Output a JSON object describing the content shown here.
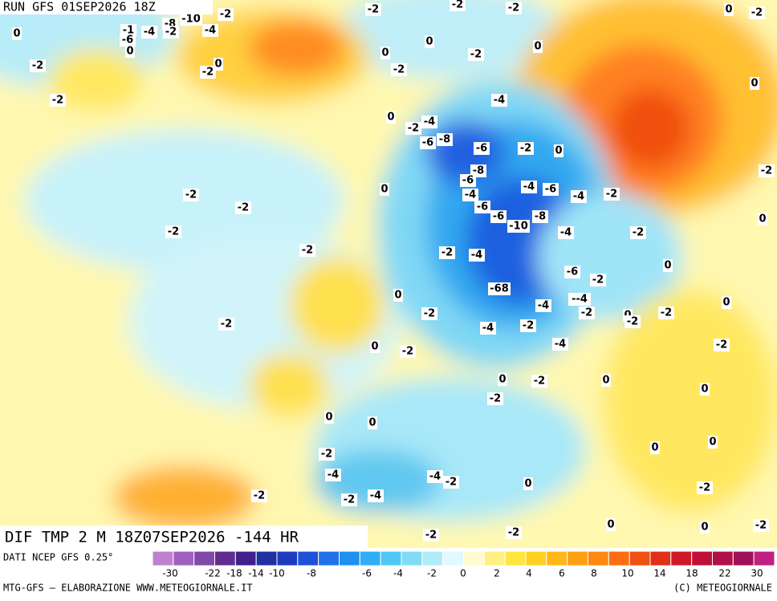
{
  "header": {
    "run": "RUN GFS 01SEP2026 18Z"
  },
  "map": {
    "title": "DIF TMP 2 M 18Z07SEP2026 -144 HR",
    "contour_labels": [
      "0",
      "-2",
      "-2",
      "-1",
      "-4",
      "-6",
      "0",
      "-8",
      "-10",
      "-2",
      "-4",
      "-2",
      "0",
      "-2",
      "-2",
      "-2",
      "-2",
      "0",
      "-2",
      "0",
      "0",
      "-2",
      "-2",
      "0",
      "0",
      "-4",
      "0",
      "-2",
      "-4",
      "-6",
      "-8",
      "-6",
      "-2",
      "0",
      "-8",
      "-6",
      "-4",
      "-6",
      "-6",
      "-10",
      "-8",
      "-4",
      "-6",
      "-4",
      "-2",
      "-2",
      "0",
      "-2",
      "-2",
      "-2",
      "-2",
      "0",
      "-2",
      "-4",
      "-4",
      "-2",
      "0",
      "-6",
      "-2",
      "-68",
      "0",
      "-4",
      "--4",
      "-2",
      "0",
      "-2",
      "-2",
      "0",
      "-2",
      "-2",
      "-4",
      "-2",
      "-4",
      "-2",
      "0",
      "-2",
      "0",
      "-2",
      "0",
      "0",
      "-2",
      "0",
      "0",
      "0",
      "0",
      "-2",
      "-4",
      "-4",
      "-2",
      "0",
      "-2",
      "-2",
      "-2",
      "-4",
      "0",
      "-2",
      "-2",
      "0",
      "-2"
    ]
  },
  "colorbar": {
    "ticks": [
      -30,
      -22,
      -18,
      -14,
      -10,
      -8,
      -6,
      -4,
      -2,
      0,
      2,
      4,
      6,
      8,
      10,
      14,
      18,
      22,
      30
    ],
    "colors": [
      "#c080d0",
      "#a060c0",
      "#8048a8",
      "#602c90",
      "#40208c",
      "#2030a0",
      "#1c3cc0",
      "#1e50d8",
      "#2070e8",
      "#2090f0",
      "#30aef5",
      "#50c8f5",
      "#80dcf5",
      "#b0ecf8",
      "#e0faff",
      "#fffad0",
      "#fff080",
      "#ffe640",
      "#ffd020",
      "#ffb818",
      "#ffa010",
      "#ff8810",
      "#ff6c10",
      "#f05010",
      "#e03018",
      "#d01828",
      "#c01038",
      "#b01048",
      "#a01058",
      "#c02080"
    ]
  },
  "footer": {
    "source": "DATI NCEP GFS 0.25°",
    "credit": "MTG-GFS — ELABORAZIONE WWW.METEOGIORNALE.IT",
    "copyright": "(C) METEOGIORNALE"
  }
}
